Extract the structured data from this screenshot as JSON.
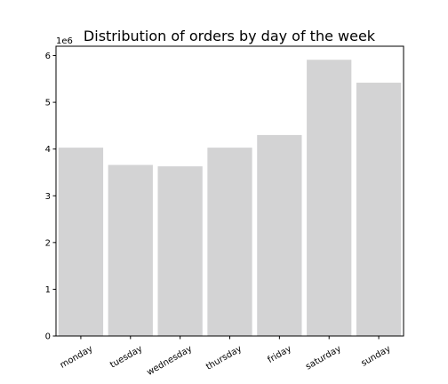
{
  "chart_data": {
    "type": "bar",
    "title": "Distribution of orders by day of the week",
    "xlabel": "",
    "ylabel": "",
    "categories": [
      "monday",
      "tuesday",
      "wednesday",
      "thursday",
      "friday",
      "saturday",
      "sunday"
    ],
    "values": [
      4030000,
      3660000,
      3630000,
      4030000,
      4300000,
      5910000,
      5420000
    ],
    "ylim": [
      0,
      6200000
    ],
    "y_ticks": [
      0,
      1,
      2,
      3,
      4,
      5,
      6
    ],
    "y_offset_text": "1e6",
    "bar_color": "#d3d3d4",
    "grid": false,
    "legend": "none"
  }
}
